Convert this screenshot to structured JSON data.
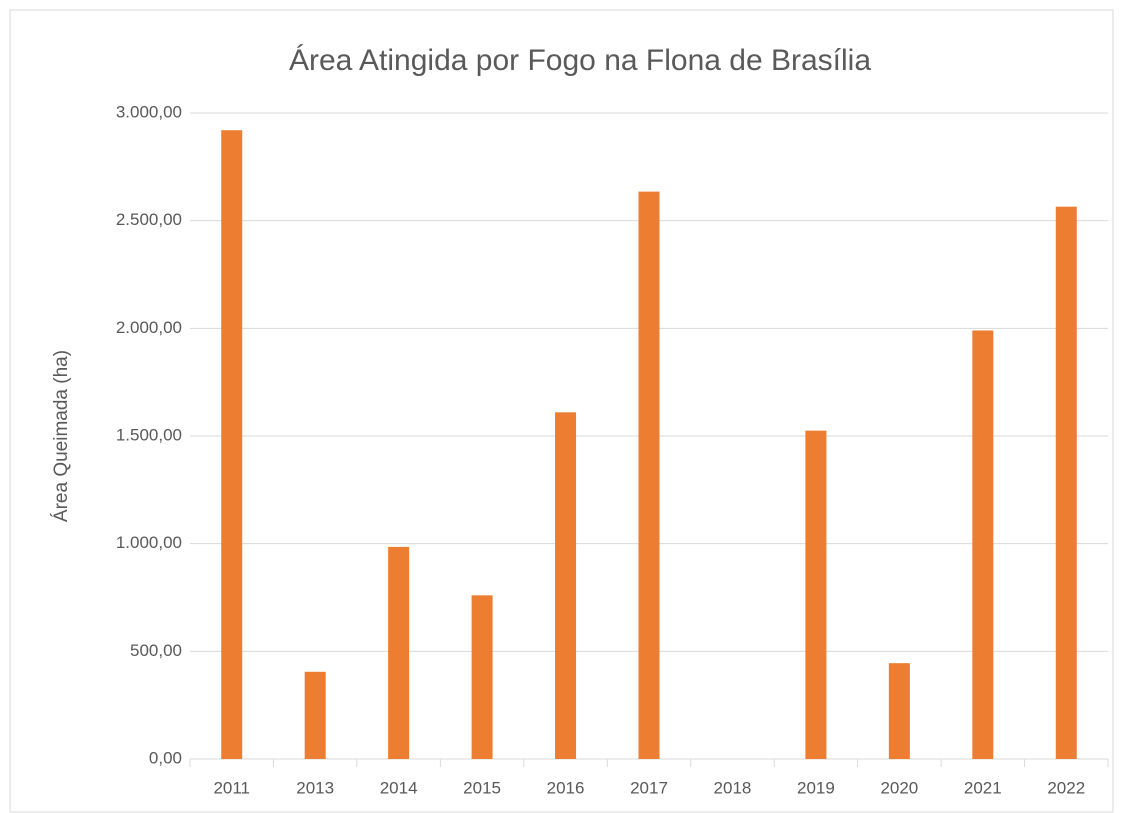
{
  "chart_data": {
    "type": "bar",
    "title": "Área Atingida por Fogo na Flona de Brasília",
    "y_label": "Área Queimada (ha)",
    "categories": [
      "2011",
      "2013",
      "2014",
      "2015",
      "2016",
      "2017",
      "2018",
      "2019",
      "2020",
      "2021",
      "2022"
    ],
    "values": [
      2920,
      405,
      985,
      760,
      1610,
      2635,
      0,
      1525,
      445,
      1990,
      2565
    ],
    "color": "#ed7d31",
    "ylim": [
      0,
      3000
    ],
    "yticks": [
      {
        "value": 0,
        "label": "0,00"
      },
      {
        "value": 500,
        "label": "500,00"
      },
      {
        "value": 1000,
        "label": "1.000,00"
      },
      {
        "value": 1500,
        "label": "1.500,00"
      },
      {
        "value": 2000,
        "label": "2.000,00"
      },
      {
        "value": 2500,
        "label": "2.500,00"
      },
      {
        "value": 3000,
        "label": "3.000,00"
      }
    ],
    "grid": true
  }
}
